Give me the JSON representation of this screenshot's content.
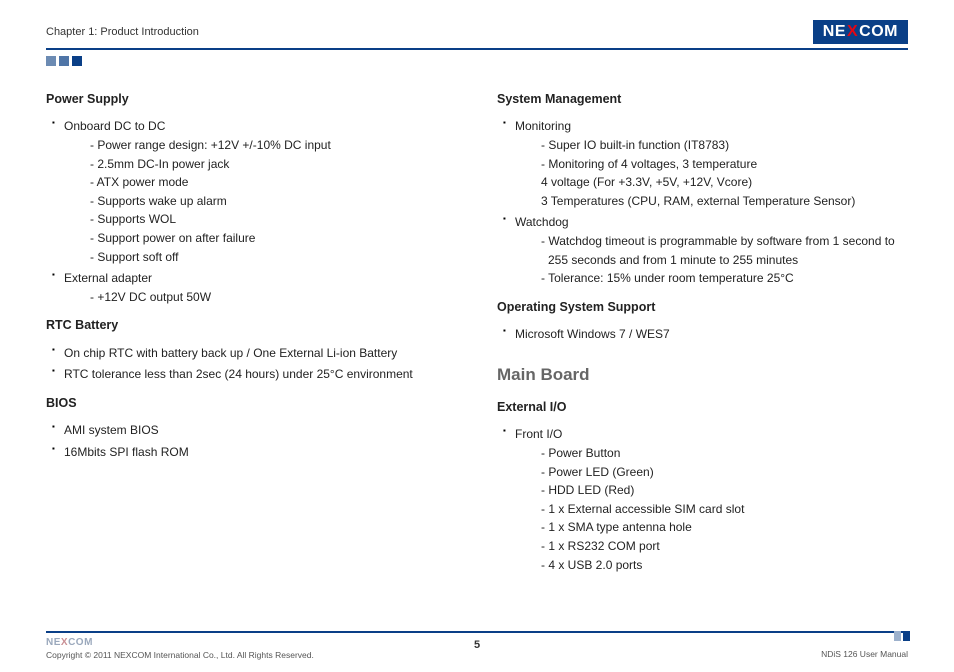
{
  "header": {
    "chapter": "Chapter 1: Product Introduction",
    "logo_pre": "NE",
    "logo_x": "X",
    "logo_post": "COM"
  },
  "left": {
    "power_supply": {
      "title": "Power Supply",
      "b1": "Onboard DC to DC",
      "b1_s1": "- Power range design: +12V +/-10% DC input",
      "b1_s2": "- 2.5mm DC-In power jack",
      "b1_s3": "- ATX power mode",
      "b1_s4": "- Supports wake up alarm",
      "b1_s5": "- Supports WOL",
      "b1_s6": "- Support power on after failure",
      "b1_s7": "- Support soft off",
      "b2": "External adapter",
      "b2_s1": "- +12V DC output 50W"
    },
    "rtc": {
      "title": "RTC Battery",
      "b1": "On chip RTC with battery back up / One External Li-ion Battery",
      "b2": "RTC tolerance less than 2sec (24 hours) under 25°C environment"
    },
    "bios": {
      "title": "BIOS",
      "b1": "AMI system BIOS",
      "b2": "16Mbits SPI flash ROM"
    }
  },
  "right": {
    "sys": {
      "title": "System Management",
      "b1": "Monitoring",
      "b1_s1": "- Super IO built-in function (IT8783)",
      "b1_s2": "- Monitoring of 4 voltages, 3 temperature",
      "b1_s3": "  4 voltage (For +3.3V, +5V, +12V, Vcore)",
      "b1_s4": "  3 Temperatures (CPU, RAM, external Temperature Sensor)",
      "b2": "Watchdog",
      "b2_s1": "- Watchdog timeout is programmable by software from 1 second to 255 seconds and from 1 minute to 255 minutes",
      "b2_s2": "- Tolerance: 15% under room temperature 25°C"
    },
    "os": {
      "title": "Operating System Support",
      "b1": "Microsoft Windows 7 / WES7"
    },
    "main_board": "Main Board",
    "ext": {
      "title": "External I/O",
      "b1": "Front I/O",
      "b1_s1": "- Power Button",
      "b1_s2": "- Power LED (Green)",
      "b1_s3": "- HDD LED (Red)",
      "b1_s4": "- 1 x External accessible SIM card slot",
      "b1_s5": "- 1 x SMA type antenna hole",
      "b1_s6": "- 1 x RS232 COM port",
      "b1_s7": "- 4 x USB 2.0 ports"
    }
  },
  "footer": {
    "logo_pre": "NE",
    "logo_x": "X",
    "logo_post": "COM",
    "copyright": "Copyright © 2011 NEXCOM International Co., Ltd. All Rights Reserved.",
    "page": "5",
    "manual": "NDiS 126 User Manual"
  }
}
